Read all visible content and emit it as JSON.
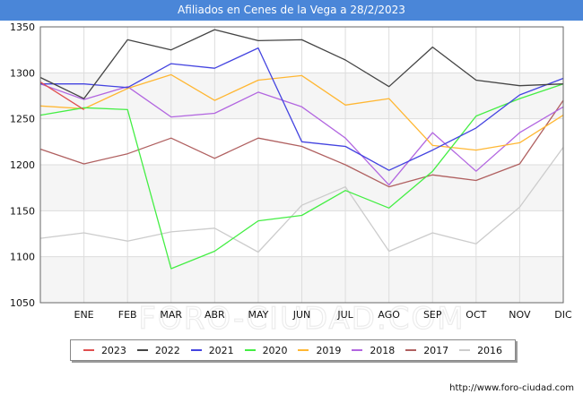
{
  "title": "Afiliados en Cenes de la Vega a 28/2/2023",
  "source": "http://www.foro-ciudad.com",
  "watermark": "FORO-CIUDAD.COM",
  "chart_data": {
    "type": "line",
    "title": "Afiliados en Cenes de la Vega a 28/2/2023",
    "x_labels": [
      "",
      "ENE",
      "FEB",
      "MAR",
      "ABR",
      "MAY",
      "JUN",
      "JUL",
      "AGO",
      "SEP",
      "OCT",
      "NOV",
      "DIC"
    ],
    "y_ticks": [
      1050,
      1100,
      1150,
      1200,
      1250,
      1300,
      1350
    ],
    "ylim": [
      1050,
      1350
    ],
    "grid": true,
    "legend_position": "bottom",
    "series": [
      {
        "name": "2023",
        "color": "#e05050",
        "values": [
          1290,
          1260
        ]
      },
      {
        "name": "2022",
        "color": "#444444",
        "values": [
          1295,
          1272,
          1336,
          1325,
          1347,
          1335,
          1336,
          1314,
          1285,
          1328,
          1292,
          1286,
          1288
        ]
      },
      {
        "name": "2021",
        "color": "#4444e0",
        "values": [
          1288,
          1288,
          1284,
          1310,
          1305,
          1327,
          1225,
          1220,
          1194,
          1216,
          1240,
          1276,
          1294
        ]
      },
      {
        "name": "2020",
        "color": "#44ee44",
        "values": [
          1254,
          1262,
          1260,
          1087,
          1106,
          1139,
          1145,
          1172,
          1153,
          1193,
          1253,
          1272,
          1288
        ]
      },
      {
        "name": "2019",
        "color": "#ffb733",
        "values": [
          1264,
          1261,
          1283,
          1298,
          1270,
          1292,
          1297,
          1265,
          1272,
          1221,
          1216,
          1224,
          1254
        ]
      },
      {
        "name": "2018",
        "color": "#b266e0",
        "values": [
          1288,
          1271,
          1285,
          1252,
          1256,
          1279,
          1263,
          1229,
          1178,
          1235,
          1193,
          1235,
          1263
        ]
      },
      {
        "name": "2017",
        "color": "#b06060",
        "values": [
          1217,
          1201,
          1212,
          1229,
          1207,
          1229,
          1220,
          1200,
          1176,
          1189,
          1183,
          1201,
          1270
        ]
      },
      {
        "name": "2016",
        "color": "#cccccc",
        "values": [
          1120,
          1126,
          1117,
          1127,
          1131,
          1105,
          1156,
          1176,
          1106,
          1126,
          1114,
          1154,
          1219
        ]
      }
    ]
  }
}
